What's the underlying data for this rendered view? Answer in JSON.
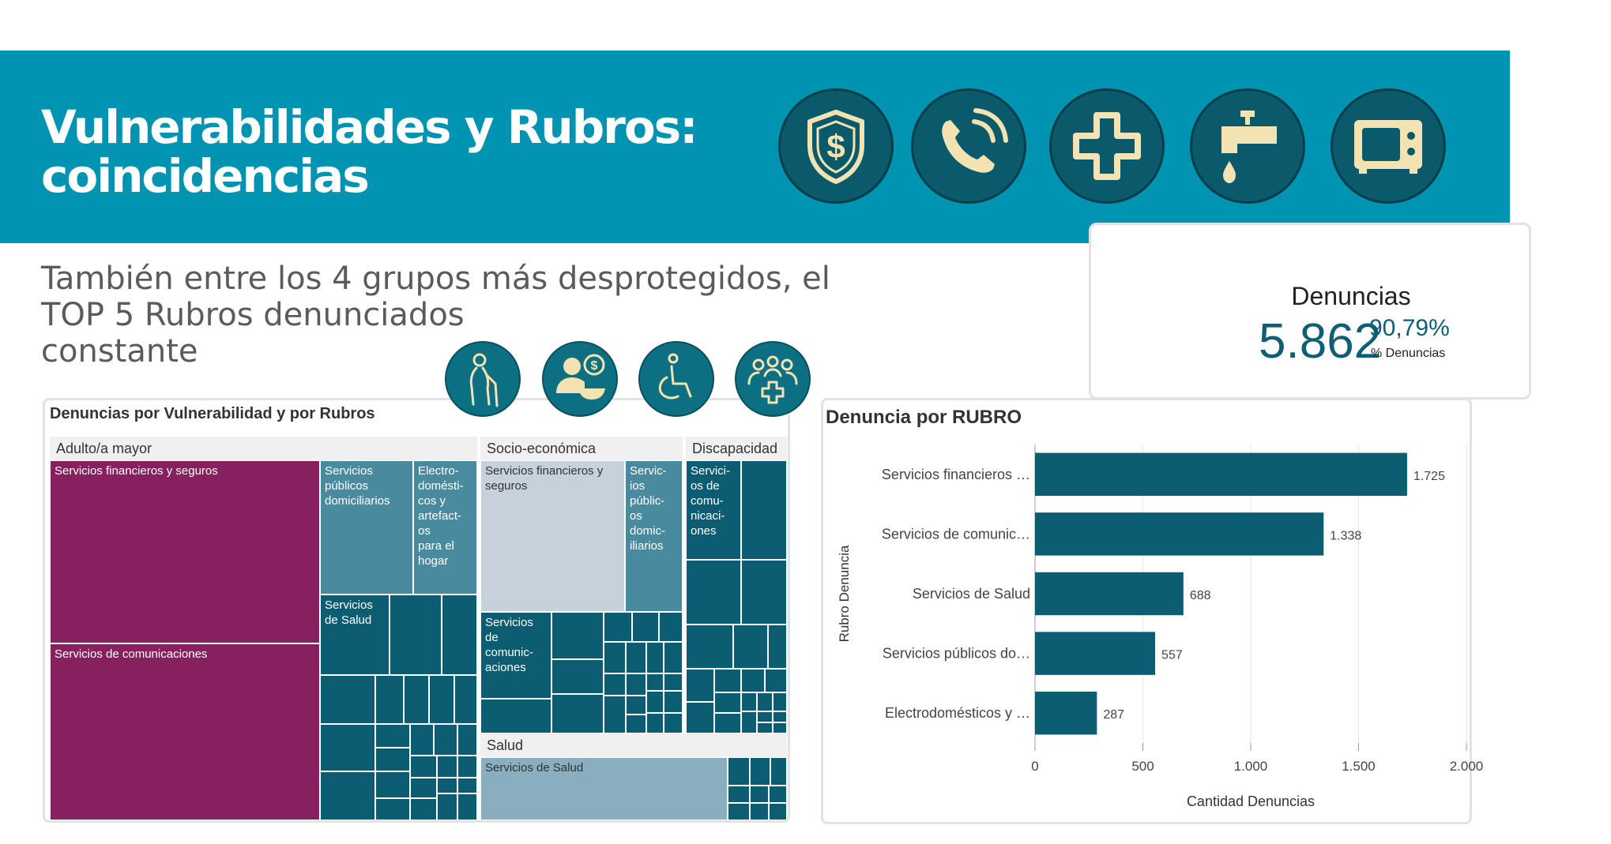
{
  "header": {
    "title_line1": "Vulnerabilidades y Rubros:",
    "title_line2": "coincidencias",
    "icons": [
      "shield-dollar-icon",
      "phone-icon",
      "medical-cross-icon",
      "water-tap-icon",
      "microwave-icon"
    ]
  },
  "subtitle": {
    "line1": "También entre los 4 grupos más desprotegidos, el",
    "line2": "TOP 5 Rubros denunciados",
    "line3": "constante"
  },
  "vulnerability_icons": [
    "elderly-person-icon",
    "socio-economic-icon",
    "wheelchair-icon",
    "health-group-icon"
  ],
  "kpi": {
    "label": "Denuncias",
    "value": "5.862",
    "percent": "90,79%",
    "percent_label": "% Denuncias"
  },
  "colors": {
    "banner": "#0093b2",
    "primary": "#0c5d72",
    "magenta": "#86205e",
    "steel": "#4a8a9e",
    "light_steel": "#c7d1db",
    "pale_steel": "#88aebf"
  },
  "chart_data": [
    {
      "type": "treemap",
      "title": "Denuncias por Vulnerabilidad y por Rubros",
      "groups": [
        {
          "name": "Adulto/a mayor",
          "cells": [
            "Servicios financieros y seguros",
            "Servicios de comunicaciones",
            "Servicios públicos domiciliarios",
            "Electro-\ndomésti-\ncos y\nartefact-\nos\npara el\nhogar",
            "Servicios\nde Salud"
          ]
        },
        {
          "name": "Socio-económica",
          "cells": [
            "Servicios financieros y\nseguros",
            "Servic-\nios\npúblic-\nos\ndomic-\niliarios",
            "Servicios\nde\ncomunic-\naciones"
          ]
        },
        {
          "name": "Discapacidad",
          "cells": [
            "Servici-\nos de\ncomu-\nnicaci-\nones"
          ]
        },
        {
          "name": "Salud",
          "cells": [
            "Servicios de Salud"
          ]
        }
      ]
    },
    {
      "type": "bar",
      "orientation": "horizontal",
      "title": "Denuncia por RUBRO",
      "xlabel": "Cantidad Denuncias",
      "ylabel": "Rubro Denuncia",
      "categories": [
        "Servicios financieros …",
        "Servicios de comunic…",
        "Servicios de Salud",
        "Servicios públicos do…",
        "Electrodomésticos y …"
      ],
      "values": [
        1725,
        1338,
        688,
        557,
        287
      ],
      "value_labels": [
        "1.725",
        "1.338",
        "688",
        "557",
        "287"
      ],
      "xlim": [
        0,
        2000
      ],
      "xticks": [
        0,
        500,
        1000,
        1500,
        2000
      ],
      "xtick_labels": [
        "0",
        "500",
        "1.000",
        "1.500",
        "2.000"
      ],
      "grid": true
    }
  ]
}
